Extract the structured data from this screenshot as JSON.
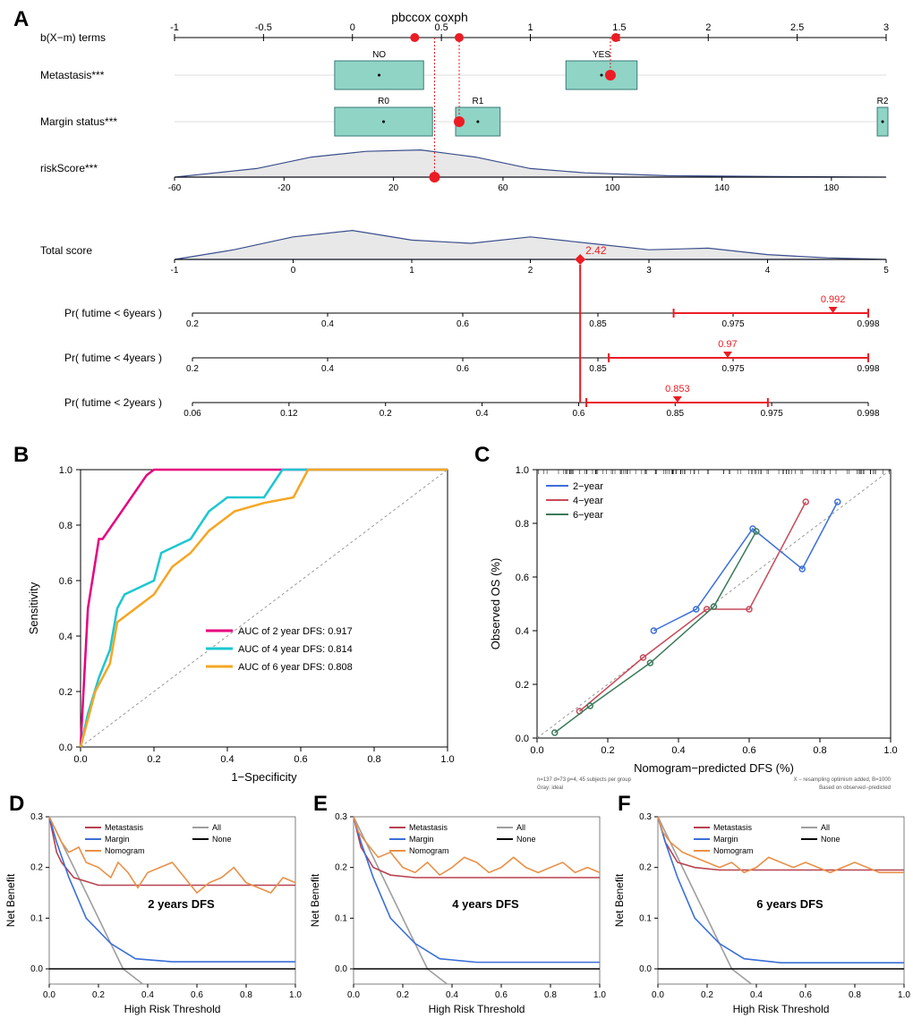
{
  "panelA": {
    "label": "A",
    "title": "pbccox coxph",
    "bx_terms": {
      "label": "b(X−m) terms",
      "ticks": [
        -1,
        -0.5,
        0,
        0.5,
        1,
        1.5,
        2,
        2.5,
        3
      ],
      "min": -1,
      "max": 3,
      "dots": [
        0.35,
        0.6,
        1.48
      ]
    },
    "metastasis": {
      "label": "Metastasis***",
      "boxes": [
        {
          "x": -0.1,
          "w": 0.5,
          "label": "NO"
        },
        {
          "x": 1.2,
          "w": 0.4,
          "label": "YES"
        }
      ],
      "dot": 1.45,
      "box_fill": "#8FD4C4"
    },
    "margin": {
      "label": "Margin status***",
      "boxes": [
        {
          "x": -0.1,
          "w": 0.55,
          "label": "R0"
        },
        {
          "x": 0.58,
          "w": 0.25,
          "label": "R1"
        },
        {
          "x": 2.95,
          "w": 0.06,
          "label": "R2"
        }
      ],
      "dot": 0.6,
      "box_fill": "#8FD4C4"
    },
    "riskScore": {
      "label": "riskScore***",
      "ticks": [
        -60,
        -20,
        20,
        60,
        100,
        140,
        180
      ],
      "min": -60,
      "max": 200,
      "density": [
        [
          -60,
          0
        ],
        [
          -50,
          0.1
        ],
        [
          -30,
          0.3
        ],
        [
          -10,
          0.7
        ],
        [
          10,
          0.9
        ],
        [
          30,
          0.95
        ],
        [
          50,
          0.7
        ],
        [
          70,
          0.3
        ],
        [
          90,
          0.15
        ],
        [
          120,
          0.05
        ],
        [
          160,
          0.02
        ],
        [
          200,
          0
        ]
      ],
      "dot": 35,
      "fill": "#E8E8E8",
      "stroke": "#3A4E8C"
    },
    "totalScore": {
      "label": "Total score",
      "ticks": [
        -1,
        0,
        1,
        2,
        3,
        4,
        5
      ],
      "min": -1,
      "max": 5,
      "density": [
        [
          -1,
          0
        ],
        [
          -0.5,
          0.3
        ],
        [
          0,
          0.7
        ],
        [
          0.5,
          0.9
        ],
        [
          1,
          0.6
        ],
        [
          1.5,
          0.5
        ],
        [
          2,
          0.7
        ],
        [
          2.5,
          0.5
        ],
        [
          3,
          0.3
        ],
        [
          3.5,
          0.35
        ],
        [
          4,
          0.15
        ],
        [
          4.5,
          0.05
        ],
        [
          5,
          0
        ]
      ],
      "marker": 2.42,
      "marker_text": "2.42",
      "fill": "#E8E8E8",
      "stroke": "#3A4E8C"
    },
    "pr6": {
      "label": "Pr( futime < 6years )",
      "ticks": [
        0.2,
        0.4,
        0.6,
        0.85,
        0.975,
        0.998
      ],
      "value": 0.992,
      "text": "0.992",
      "ci": [
        0.92,
        0.998
      ]
    },
    "pr4": {
      "label": "Pr( futime < 4years )",
      "ticks": [
        0.2,
        0.4,
        0.6,
        0.85,
        0.975,
        0.998
      ],
      "value": 0.97,
      "text": "0.97",
      "ci": [
        0.86,
        0.998
      ]
    },
    "pr2": {
      "label": "Pr( futime < 2years )",
      "ticks": [
        0.06,
        0.12,
        0.2,
        0.4,
        0.6,
        0.85,
        0.975,
        0.998
      ],
      "value": 0.853,
      "text": "0.853",
      "ci": [
        0.62,
        0.97
      ]
    },
    "red": "#EC1C24"
  },
  "panelB": {
    "label": "B",
    "xlabel": "1−Specificity",
    "ylabel": "Sensitivity",
    "ticks": [
      0.0,
      0.2,
      0.4,
      0.6,
      0.8,
      1.0
    ],
    "curves": [
      {
        "name": "AUC of 2 year DFS:  0.917",
        "color": "#E6007E",
        "pts": [
          [
            0,
            0
          ],
          [
            0.01,
            0.25
          ],
          [
            0.02,
            0.5
          ],
          [
            0.05,
            0.75
          ],
          [
            0.06,
            0.75
          ],
          [
            0.18,
            0.98
          ],
          [
            0.2,
            1
          ],
          [
            1,
            1
          ]
        ]
      },
      {
        "name": "AUC of 4 year DFS:  0.814",
        "color": "#1CC7D0",
        "pts": [
          [
            0,
            0
          ],
          [
            0.02,
            0.12
          ],
          [
            0.05,
            0.25
          ],
          [
            0.08,
            0.35
          ],
          [
            0.1,
            0.5
          ],
          [
            0.12,
            0.55
          ],
          [
            0.2,
            0.6
          ],
          [
            0.22,
            0.7
          ],
          [
            0.3,
            0.75
          ],
          [
            0.35,
            0.85
          ],
          [
            0.4,
            0.9
          ],
          [
            0.5,
            0.9
          ],
          [
            0.55,
            1
          ],
          [
            1,
            1
          ]
        ]
      },
      {
        "name": "AUC of 6 year DFS:  0.808",
        "color": "#F5A623",
        "pts": [
          [
            0,
            0
          ],
          [
            0.02,
            0.1
          ],
          [
            0.04,
            0.2
          ],
          [
            0.08,
            0.3
          ],
          [
            0.1,
            0.45
          ],
          [
            0.15,
            0.5
          ],
          [
            0.2,
            0.55
          ],
          [
            0.25,
            0.65
          ],
          [
            0.3,
            0.7
          ],
          [
            0.35,
            0.78
          ],
          [
            0.42,
            0.85
          ],
          [
            0.5,
            0.88
          ],
          [
            0.58,
            0.9
          ],
          [
            0.62,
            1
          ],
          [
            1,
            1
          ]
        ]
      }
    ],
    "diag_color": "#999"
  },
  "panelC": {
    "label": "C",
    "xlabel": "Nomogram−predicted DFS (%)",
    "ylabel": "Observed OS (%)",
    "ticks": [
      0.0,
      0.2,
      0.4,
      0.6,
      0.8,
      1.0
    ],
    "legend": [
      {
        "name": "2−year",
        "color": "#3A6FD8"
      },
      {
        "name": "4−year",
        "color": "#C84A5A"
      },
      {
        "name": "6−year",
        "color": "#3A7A5A"
      }
    ],
    "footnote_left": "n=137 d=73 p=4, 45 subjects per group\nGray: ideal",
    "footnote_right": "X − resampling optimism added, B=1000\nBased on observed−predicted",
    "rug": true,
    "series": [
      {
        "color": "#3A6FD8",
        "pts": [
          [
            0.33,
            0.4
          ],
          [
            0.45,
            0.48
          ],
          [
            0.61,
            0.78
          ],
          [
            0.75,
            0.63
          ],
          [
            0.85,
            0.88
          ]
        ]
      },
      {
        "color": "#C84A5A",
        "pts": [
          [
            0.12,
            0.1
          ],
          [
            0.3,
            0.3
          ],
          [
            0.48,
            0.48
          ],
          [
            0.6,
            0.48
          ],
          [
            0.76,
            0.88
          ]
        ]
      },
      {
        "color": "#3A7A5A",
        "pts": [
          [
            0.05,
            0.02
          ],
          [
            0.15,
            0.12
          ],
          [
            0.32,
            0.28
          ],
          [
            0.5,
            0.49
          ],
          [
            0.62,
            0.77
          ]
        ]
      }
    ]
  },
  "dca": {
    "xlabel": "High Risk Threshold",
    "ylabel": "Net Benefit",
    "xticks": [
      0.0,
      0.2,
      0.4,
      0.6,
      0.8,
      1.0
    ],
    "yticks": [
      0.0,
      0.1,
      0.2,
      0.3
    ],
    "ymin": -0.03,
    "ymax": 0.3,
    "legend": [
      {
        "name": "Metastasis",
        "color": "#B8414F"
      },
      {
        "name": "Margin",
        "color": "#3A6FD8"
      },
      {
        "name": "Nomogram",
        "color": "#E89148"
      },
      {
        "name": "All",
        "color": "#9E9E9E"
      },
      {
        "name": "None",
        "color": "#000000"
      }
    ],
    "panels": [
      {
        "label": "D",
        "title": "2 years DFS",
        "series": {
          "all": [
            [
              0,
              0.3
            ],
            [
              0.3,
              0
            ],
            [
              0.38,
              -0.03
            ]
          ],
          "none": [
            [
              0,
              0
            ],
            [
              1,
              0
            ]
          ],
          "metastasis": [
            [
              0,
              0.3
            ],
            [
              0.03,
              0.23
            ],
            [
              0.05,
              0.21
            ],
            [
              0.1,
              0.18
            ],
            [
              0.2,
              0.165
            ],
            [
              1,
              0.165
            ]
          ],
          "margin": [
            [
              0,
              0.3
            ],
            [
              0.03,
              0.25
            ],
            [
              0.08,
              0.18
            ],
            [
              0.15,
              0.1
            ],
            [
              0.25,
              0.05
            ],
            [
              0.35,
              0.02
            ],
            [
              0.5,
              0.014
            ],
            [
              1,
              0.014
            ]
          ],
          "nomogram": [
            [
              0,
              0.3
            ],
            [
              0.02,
              0.28
            ],
            [
              0.05,
              0.25
            ],
            [
              0.08,
              0.23
            ],
            [
              0.12,
              0.24
            ],
            [
              0.15,
              0.21
            ],
            [
              0.2,
              0.2
            ],
            [
              0.25,
              0.18
            ],
            [
              0.28,
              0.21
            ],
            [
              0.32,
              0.19
            ],
            [
              0.36,
              0.16
            ],
            [
              0.4,
              0.19
            ],
            [
              0.45,
              0.2
            ],
            [
              0.5,
              0.21
            ],
            [
              0.55,
              0.18
            ],
            [
              0.6,
              0.15
            ],
            [
              0.65,
              0.17
            ],
            [
              0.7,
              0.18
            ],
            [
              0.75,
              0.2
            ],
            [
              0.8,
              0.17
            ],
            [
              0.85,
              0.16
            ],
            [
              0.9,
              0.15
            ],
            [
              0.95,
              0.18
            ],
            [
              1,
              0.17
            ]
          ]
        }
      },
      {
        "label": "E",
        "title": "4 years DFS",
        "series": {
          "all": [
            [
              0,
              0.3
            ],
            [
              0.3,
              0
            ],
            [
              0.38,
              -0.03
            ]
          ],
          "none": [
            [
              0,
              0
            ],
            [
              1,
              0
            ]
          ],
          "metastasis": [
            [
              0,
              0.3
            ],
            [
              0.03,
              0.24
            ],
            [
              0.08,
              0.2
            ],
            [
              0.15,
              0.185
            ],
            [
              0.25,
              0.18
            ],
            [
              1,
              0.18
            ]
          ],
          "margin": [
            [
              0,
              0.3
            ],
            [
              0.03,
              0.25
            ],
            [
              0.08,
              0.18
            ],
            [
              0.15,
              0.1
            ],
            [
              0.25,
              0.05
            ],
            [
              0.35,
              0.02
            ],
            [
              0.5,
              0.013
            ],
            [
              1,
              0.013
            ]
          ],
          "nomogram": [
            [
              0,
              0.3
            ],
            [
              0.02,
              0.27
            ],
            [
              0.05,
              0.25
            ],
            [
              0.1,
              0.22
            ],
            [
              0.15,
              0.23
            ],
            [
              0.2,
              0.2
            ],
            [
              0.25,
              0.19
            ],
            [
              0.3,
              0.21
            ],
            [
              0.35,
              0.185
            ],
            [
              0.4,
              0.2
            ],
            [
              0.45,
              0.22
            ],
            [
              0.5,
              0.21
            ],
            [
              0.55,
              0.19
            ],
            [
              0.6,
              0.2
            ],
            [
              0.65,
              0.22
            ],
            [
              0.7,
              0.2
            ],
            [
              0.75,
              0.19
            ],
            [
              0.8,
              0.2
            ],
            [
              0.85,
              0.21
            ],
            [
              0.9,
              0.19
            ],
            [
              0.95,
              0.2
            ],
            [
              1,
              0.19
            ]
          ]
        }
      },
      {
        "label": "F",
        "title": "6 years DFS",
        "series": {
          "all": [
            [
              0,
              0.3
            ],
            [
              0.3,
              0
            ],
            [
              0.38,
              -0.03
            ]
          ],
          "none": [
            [
              0,
              0
            ],
            [
              1,
              0
            ]
          ],
          "metastasis": [
            [
              0,
              0.3
            ],
            [
              0.03,
              0.25
            ],
            [
              0.08,
              0.21
            ],
            [
              0.15,
              0.2
            ],
            [
              0.25,
              0.195
            ],
            [
              1,
              0.195
            ]
          ],
          "margin": [
            [
              0,
              0.3
            ],
            [
              0.03,
              0.25
            ],
            [
              0.08,
              0.18
            ],
            [
              0.15,
              0.1
            ],
            [
              0.25,
              0.05
            ],
            [
              0.35,
              0.02
            ],
            [
              0.5,
              0.012
            ],
            [
              1,
              0.012
            ]
          ],
          "nomogram": [
            [
              0,
              0.3
            ],
            [
              0.02,
              0.27
            ],
            [
              0.05,
              0.25
            ],
            [
              0.1,
              0.23
            ],
            [
              0.15,
              0.22
            ],
            [
              0.2,
              0.21
            ],
            [
              0.25,
              0.2
            ],
            [
              0.3,
              0.21
            ],
            [
              0.35,
              0.19
            ],
            [
              0.4,
              0.2
            ],
            [
              0.45,
              0.22
            ],
            [
              0.5,
              0.21
            ],
            [
              0.55,
              0.2
            ],
            [
              0.6,
              0.21
            ],
            [
              0.65,
              0.2
            ],
            [
              0.7,
              0.19
            ],
            [
              0.75,
              0.2
            ],
            [
              0.8,
              0.21
            ],
            [
              0.85,
              0.2
            ],
            [
              0.9,
              0.19
            ],
            [
              0.95,
              0.19
            ],
            [
              1,
              0.19
            ]
          ]
        }
      }
    ]
  }
}
